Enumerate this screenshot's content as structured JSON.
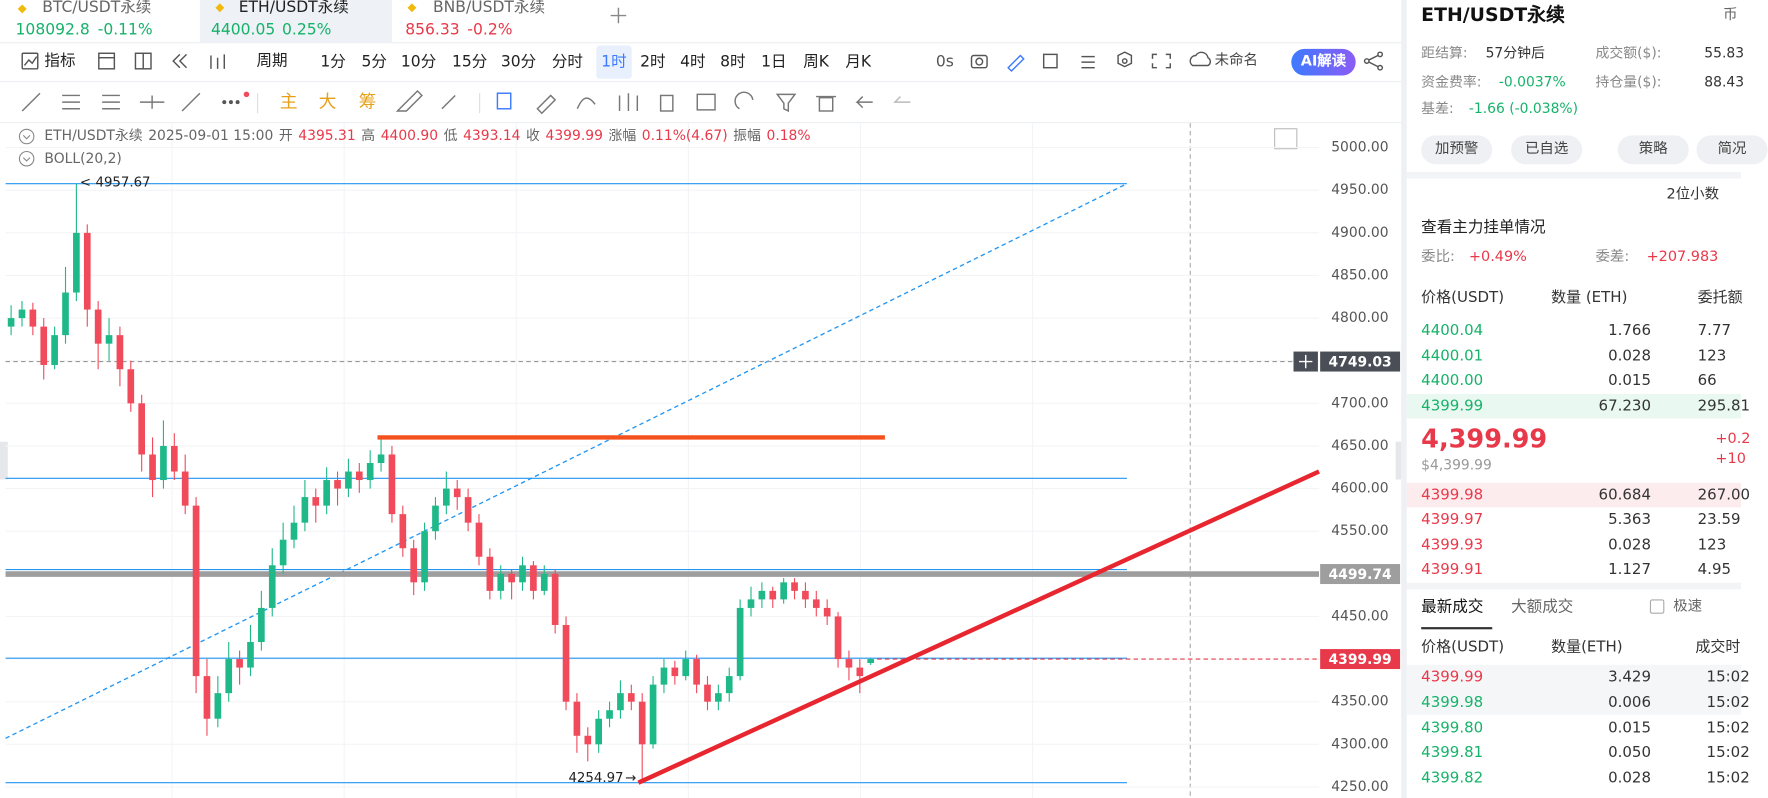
{
  "tabs": [
    {
      "symbol": "BTC/USDT永续",
      "price": "108092.8",
      "change": "-0.11%",
      "color": "#17b26a"
    },
    {
      "symbol": "ETH/USDT永续",
      "price": "4400.05",
      "change": "0.25%",
      "color": "#17b26a"
    },
    {
      "symbol": "BNB/USDT永续",
      "price": "856.33",
      "change": "-0.2%",
      "color": "#e8394a"
    }
  ],
  "toolbar": {
    "indicator": "指标",
    "period": "周期",
    "intervals": [
      "1分",
      "5分",
      "10分",
      "15分",
      "30分",
      "分时",
      "1时",
      "2时",
      "4时",
      "8时",
      "1日",
      "周K",
      "月K"
    ],
    "active_interval": 6,
    "refresh": "0s",
    "layout_name": "未命名",
    "ai": "AI解读"
  },
  "draw_tools": [
    "主",
    "大",
    "筹"
  ],
  "ohlc_header": {
    "symbol": "ETH/USDT永续",
    "time": "2025-09-01 15:00",
    "items": [
      {
        "label": "开",
        "value": "4395.31"
      },
      {
        "label": "高",
        "value": "4400.90"
      },
      {
        "label": "低",
        "value": "4393.14"
      },
      {
        "label": "收",
        "value": "4399.99"
      },
      {
        "label": "涨幅",
        "value": "0.11%(4.67)"
      },
      {
        "label": "振幅",
        "value": "0.18%"
      }
    ]
  },
  "indicator": "BOLL(20,2)",
  "chart_data": {
    "type": "candlestick",
    "up_color": "#1fb889",
    "down_color": "#f04a5b",
    "grid": true,
    "ylim": [
      4250,
      5000
    ],
    "yticks": [
      {
        "value": 5000,
        "label": "5000.00"
      },
      {
        "value": 4950,
        "label": "4950.00"
      },
      {
        "value": 4900,
        "label": "4900.00"
      },
      {
        "value": 4850,
        "label": "4850.00"
      },
      {
        "value": 4800,
        "label": "4800.00"
      },
      {
        "value": 4750,
        "label": "4750.00"
      },
      {
        "value": 4700,
        "label": "4700.00"
      },
      {
        "value": 4650,
        "label": "4650.00"
      },
      {
        "value": 4600,
        "label": "4600.00"
      },
      {
        "value": 4550,
        "label": "4550.00"
      },
      {
        "value": 4500,
        "label": "4500.00"
      },
      {
        "value": 4450,
        "label": "4450.00"
      },
      {
        "value": 4400,
        "label": "4400.00"
      },
      {
        "value": 4350,
        "label": "4350.00"
      },
      {
        "value": 4300,
        "label": "4300.00"
      },
      {
        "value": 4250,
        "label": "4250.00"
      }
    ],
    "candles": [
      [
        4790,
        4815,
        4780,
        4800
      ],
      [
        4800,
        4820,
        4790,
        4810
      ],
      [
        4810,
        4818,
        4780,
        4790
      ],
      [
        4790,
        4800,
        4728,
        4745
      ],
      [
        4745,
        4790,
        4740,
        4780
      ],
      [
        4780,
        4860,
        4770,
        4830
      ],
      [
        4830,
        4957.67,
        4820,
        4900
      ],
      [
        4900,
        4910,
        4790,
        4810
      ],
      [
        4810,
        4820,
        4740,
        4770
      ],
      [
        4770,
        4800,
        4750,
        4780
      ],
      [
        4780,
        4790,
        4720,
        4740
      ],
      [
        4740,
        4750,
        4690,
        4700
      ],
      [
        4700,
        4710,
        4620,
        4640
      ],
      [
        4640,
        4660,
        4590,
        4610
      ],
      [
        4610,
        4680,
        4600,
        4650
      ],
      [
        4650,
        4665,
        4610,
        4620
      ],
      [
        4620,
        4640,
        4570,
        4580
      ],
      [
        4580,
        4590,
        4360,
        4380
      ],
      [
        4380,
        4400,
        4310,
        4330
      ],
      [
        4330,
        4380,
        4320,
        4360
      ],
      [
        4360,
        4420,
        4350,
        4400
      ],
      [
        4400,
        4410,
        4370,
        4390
      ],
      [
        4390,
        4440,
        4380,
        4420
      ],
      [
        4420,
        4480,
        4410,
        4460
      ],
      [
        4460,
        4530,
        4450,
        4510
      ],
      [
        4510,
        4560,
        4500,
        4540
      ],
      [
        4540,
        4580,
        4530,
        4560
      ],
      [
        4560,
        4610,
        4550,
        4590
      ],
      [
        4590,
        4600,
        4560,
        4580
      ],
      [
        4580,
        4625,
        4570,
        4610
      ],
      [
        4610,
        4620,
        4580,
        4600
      ],
      [
        4600,
        4635,
        4590,
        4620
      ],
      [
        4620,
        4630,
        4595,
        4610
      ],
      [
        4610,
        4645,
        4600,
        4630
      ],
      [
        4630,
        4660,
        4620,
        4640
      ],
      [
        4640,
        4650,
        4560,
        4570
      ],
      [
        4570,
        4580,
        4520,
        4530
      ],
      [
        4530,
        4540,
        4475,
        4490
      ],
      [
        4490,
        4560,
        4480,
        4550
      ],
      [
        4550,
        4590,
        4540,
        4580
      ],
      [
        4580,
        4620,
        4570,
        4600
      ],
      [
        4600,
        4610,
        4575,
        4590
      ],
      [
        4590,
        4600,
        4550,
        4560
      ],
      [
        4560,
        4570,
        4510,
        4520
      ],
      [
        4520,
        4530,
        4470,
        4480
      ],
      [
        4480,
        4510,
        4470,
        4500
      ],
      [
        4500,
        4505,
        4470,
        4490
      ],
      [
        4490,
        4520,
        4480,
        4510
      ],
      [
        4510,
        4515,
        4470,
        4480
      ],
      [
        4480,
        4510,
        4475,
        4500
      ],
      [
        4500,
        4505,
        4430,
        4440
      ],
      [
        4440,
        4450,
        4340,
        4350
      ],
      [
        4350,
        4360,
        4290,
        4310
      ],
      [
        4310,
        4320,
        4280,
        4300
      ],
      [
        4300,
        4340,
        4290,
        4330
      ],
      [
        4330,
        4350,
        4320,
        4340
      ],
      [
        4340,
        4375,
        4330,
        4360
      ],
      [
        4360,
        4370,
        4340,
        4350
      ],
      [
        4350,
        4360,
        4254.97,
        4300
      ],
      [
        4300,
        4380,
        4295,
        4370
      ],
      [
        4370,
        4400,
        4360,
        4390
      ],
      [
        4390,
        4398,
        4370,
        4380
      ],
      [
        4380,
        4410,
        4375,
        4400
      ],
      [
        4400,
        4405,
        4360,
        4370
      ],
      [
        4370,
        4380,
        4340,
        4350
      ],
      [
        4350,
        4370,
        4340,
        4360
      ],
      [
        4360,
        4390,
        4350,
        4380
      ],
      [
        4380,
        4470,
        4375,
        4460
      ],
      [
        4460,
        4485,
        4450,
        4470
      ],
      [
        4470,
        4490,
        4460,
        4480
      ],
      [
        4480,
        4485,
        4460,
        4470
      ],
      [
        4470,
        4495,
        4465,
        4490
      ],
      [
        4490,
        4495,
        4470,
        4480
      ],
      [
        4480,
        4490,
        4460,
        4470
      ],
      [
        4470,
        4480,
        4450,
        4460
      ],
      [
        4460,
        4470,
        4440,
        4450
      ],
      [
        4450,
        4455,
        4390,
        4400
      ],
      [
        4400,
        4410,
        4375,
        4390
      ],
      [
        4390,
        4400,
        4360,
        4380
      ],
      [
        4395.31,
        4400.9,
        4393.14,
        4399.99
      ]
    ],
    "extremes": {
      "high": 4957.67,
      "low": 4254.97
    },
    "levels": [
      4957.67,
      4612,
      4505,
      4401,
      4254.97
    ],
    "level_color": "#2196f3",
    "price_lines": [
      {
        "value": 4749.03,
        "color": "#4a4f57"
      },
      {
        "value": 4499.74,
        "color": "#9e9e9e"
      },
      {
        "value": 4399.99,
        "color": "#e8394a"
      }
    ],
    "orange_line": {
      "value": 4660,
      "color": "#f4511e"
    },
    "trend_line": {
      "from": 4254.97,
      "to": 4620,
      "color": "#e8262f"
    },
    "dashed_trend": {
      "from": 4307,
      "to": 4957.67,
      "color": "#2196f3"
    }
  },
  "panel": {
    "symbol": "ETH/USDT永续",
    "corner": "币",
    "stats": [
      {
        "label": "距结算:",
        "value": "57分钟后"
      },
      {
        "label": "成交额($):",
        "value": "55.83"
      },
      {
        "label": "资金费率:",
        "value": "-0.0037%"
      },
      {
        "label": "持仓量($):",
        "value": "88.43"
      },
      {
        "label": "基差:",
        "value": "-1.66 (-0.038%)"
      }
    ],
    "buttons": [
      "加预警",
      "已自选",
      "策略",
      "简况"
    ],
    "decimals": "2位小数",
    "depth_link": "查看主力挂单情况",
    "ratio": {
      "label": "委比:",
      "value": "+0.49%"
    },
    "diff": {
      "label": "委差:",
      "value": "+207.983"
    },
    "book_header": [
      "价格(USDT)",
      "数量 (ETH)",
      "委托额"
    ],
    "asks": [
      [
        "4400.04",
        "1.766",
        "7.77"
      ],
      [
        "4400.01",
        "0.028",
        "123"
      ],
      [
        "4400.00",
        "0.015",
        "66"
      ],
      [
        "4399.99",
        "67.230",
        "295.81"
      ]
    ],
    "last": "4,399.99",
    "last_usd": "$4,399.99",
    "change": "+0.2",
    "change2": "+10",
    "bids": [
      [
        "4399.98",
        "60.684",
        "267.00"
      ],
      [
        "4399.97",
        "5.363",
        "23.59"
      ],
      [
        "4399.93",
        "0.028",
        "123"
      ],
      [
        "4399.91",
        "1.127",
        "4.95"
      ]
    ],
    "trade_tabs": [
      "最新成交",
      "大额成交"
    ],
    "fast": "极速",
    "trade_header": [
      "价格(USDT)",
      "数量(ETH)",
      "成交时"
    ],
    "trades": [
      {
        "price": "4399.99",
        "qty": "3.429",
        "time": "15:02",
        "color": "#e8394a"
      },
      {
        "price": "4399.98",
        "qty": "0.006",
        "time": "15:02",
        "color": "#17b26a"
      },
      {
        "price": "4399.80",
        "qty": "0.015",
        "time": "15:02",
        "color": "#17b26a"
      },
      {
        "price": "4399.81",
        "qty": "0.050",
        "time": "15:02",
        "color": "#17b26a"
      },
      {
        "price": "4399.82",
        "qty": "0.028",
        "time": "15:02",
        "color": "#17b26a"
      }
    ]
  }
}
